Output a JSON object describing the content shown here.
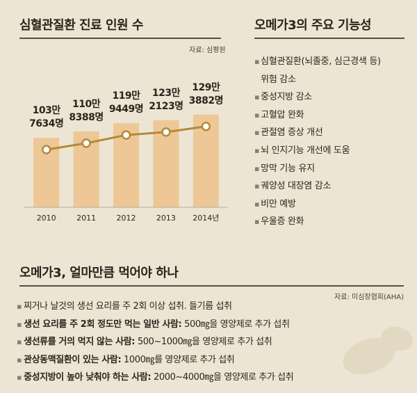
{
  "left_panel": {
    "title": "심혈관질환 진료 인원 수",
    "source": "자료: 심평원"
  },
  "chart_data": {
    "type": "bar",
    "title": "심혈관질환 진료 인원 수",
    "categories": [
      "2010",
      "2011",
      "2012",
      "2013",
      "2014년"
    ],
    "values": [
      1037634,
      1108388,
      1199449,
      1232123,
      1293882
    ],
    "value_labels": [
      [
        "103만",
        "7634명"
      ],
      [
        "110만",
        "8388명"
      ],
      [
        "119만",
        "9449명"
      ],
      [
        "123만",
        "2123명"
      ],
      [
        "129만",
        "3882명"
      ]
    ],
    "overlay": "line",
    "colors": {
      "bar": "#edc796",
      "line": "#b3893b",
      "marker_fill": "#ffffff"
    },
    "grid": false,
    "legend": "none"
  },
  "right_panel": {
    "title": "오메가3의 주요 기능성",
    "items": [
      "심혈관질환(뇌졸중, 심근경색 등)",
      "위험 감소",
      "중성지방 감소",
      "고혈압 완화",
      "관절염 증상 개선",
      "뇌 인지기능 개선에 도움",
      "망막 기능 유지",
      "궤양성 대장염 감소",
      "비만 예방",
      "우울증 완화"
    ]
  },
  "bottom_panel": {
    "title": "오메가3, 얼마만큼 먹어야 하나",
    "source": "자료: 미심장협회(AHA)",
    "items": [
      {
        "lead": "",
        "text": "찌거나 날것의 생선 요리를 주 2회 이상 섭취. 들기름 섭취"
      },
      {
        "lead": "생선 요리를 주 2회 정도만 먹는 일반 사람:",
        "text": " 500㎎을 영양제로 추가 섭취"
      },
      {
        "lead": "생선류를 거의 먹지 않는 사람:",
        "text": " 500~1000㎎을 영양제로 추가 섭취"
      },
      {
        "lead": "관상동맥질환이 있는 사람:",
        "text": " 1000㎎를 영양제로 추가 섭취"
      },
      {
        "lead": "중성지방이 높아 낮춰야 하는 사람:",
        "text": " 2000~4000㎎을 영양제로 추가 섭취"
      }
    ]
  }
}
